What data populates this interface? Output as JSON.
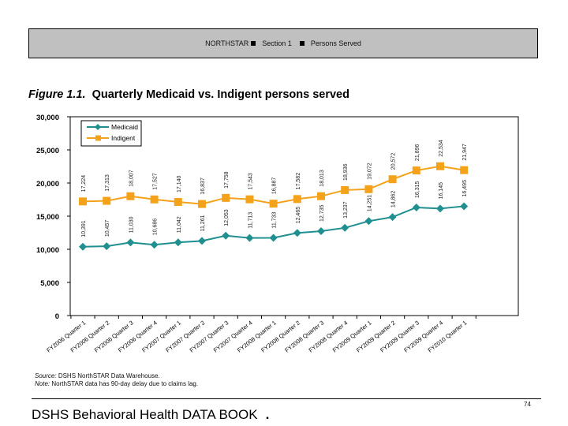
{
  "header": {
    "program": "NORTHSTAR",
    "section": "Section 1",
    "topic": "Persons Served"
  },
  "figure": {
    "label": "Figure 1.1.",
    "title": "Quarterly Medicaid vs. Indigent persons served"
  },
  "chart_data": {
    "type": "line",
    "title": "Quarterly Medicaid vs. Indigent persons served",
    "xlabel": "",
    "ylabel": "",
    "ylim": [
      0,
      30000
    ],
    "yticks": [
      0,
      5000,
      10000,
      15000,
      20000,
      25000,
      30000
    ],
    "ytick_labels": [
      "0",
      "5,000",
      "10,000",
      "15,000",
      "20,000",
      "25,000",
      "30,000"
    ],
    "grid": false,
    "legend_position": "top-left",
    "categories": [
      "FY2006 Quarter 1",
      "FY2006 Quarter 2",
      "FY2006 Quarter 3",
      "FY2006 Quarter 4",
      "FY2007 Quarter 1",
      "FY2007 Quarter 2",
      "FY2007 Quarter 3",
      "FY2007 Quarter 4",
      "FY2008 Quarter 1",
      "FY2008 Quarter 2",
      "FY2008 Quarter 3",
      "FY2008 Quarter 4",
      "FY2009 Quarter 1",
      "FY2009 Quarter 2",
      "FY2009 Quarter 3",
      "FY2009 Quarter 4",
      "FY2010 Quarter 1"
    ],
    "series": [
      {
        "name": "Medicaid",
        "color": "#1f8f8f",
        "marker": "diamond",
        "values": [
          10391,
          10457,
          11030,
          10686,
          11042,
          11261,
          12053,
          11713,
          11733,
          12465,
          12735,
          13237,
          14251,
          14862,
          16315,
          16145,
          16495
        ],
        "labels": [
          "10,391",
          "10,457",
          "11,030",
          "10,686",
          "11,042",
          "11,261",
          "12,053",
          "11,713",
          "11,733",
          "12,465",
          "12,735",
          "13,237",
          "14,251",
          "14,862",
          "16,315",
          "16,145",
          "16,495"
        ]
      },
      {
        "name": "Indigent",
        "color": "#f5a21b",
        "marker": "square",
        "values": [
          17224,
          17313,
          18007,
          17527,
          17140,
          16837,
          17758,
          17543,
          16887,
          17582,
          18013,
          18936,
          19072,
          20572,
          21896,
          22534,
          21947
        ],
        "labels": [
          "17,224",
          "17,313",
          "18,007",
          "17,527",
          "17,140",
          "16,837",
          "17,758",
          "17,543",
          "16,887",
          "17,582",
          "18,013",
          "18,936",
          "19,072",
          "20,572",
          "21,896",
          "22,534",
          "21,947"
        ]
      }
    ]
  },
  "footnotes": {
    "source_label": "Source:",
    "source_text": "DSHS NorthSTAR Data Warehouse.",
    "note_label": "Note:",
    "note_text": "NorthSTAR data has 90-day delay due to claims lag."
  },
  "footer": {
    "page_number": "74",
    "book_title": "DSHS Behavioral Health DATA BOOK",
    "book_dot": "."
  }
}
